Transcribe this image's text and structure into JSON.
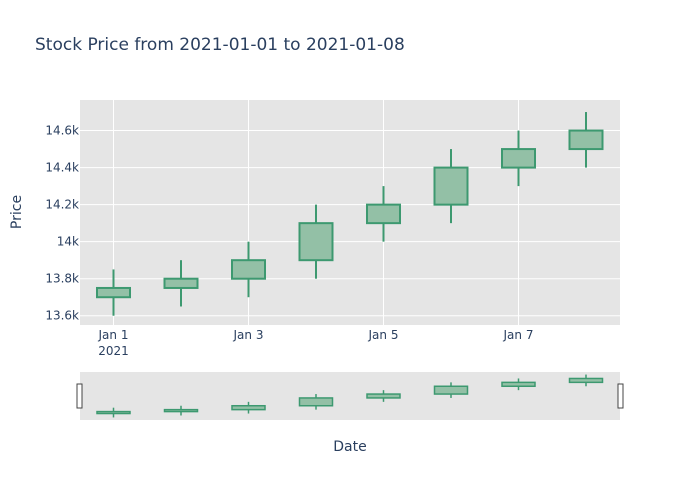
{
  "chart_data": {
    "type": "candlestick",
    "title": "Stock Price from 2021-01-01 to 2021-01-08",
    "xlabel": "Date",
    "ylabel": "Price",
    "ylim": [
      13550,
      14765
    ],
    "x_ticks": [
      {
        "date": "2021-01-01",
        "label": "Jan 1",
        "sublabel": "2021"
      },
      {
        "date": "2021-01-03",
        "label": "Jan 3",
        "sublabel": ""
      },
      {
        "date": "2021-01-05",
        "label": "Jan 5",
        "sublabel": ""
      },
      {
        "date": "2021-01-07",
        "label": "Jan 7",
        "sublabel": ""
      }
    ],
    "y_ticks": [
      {
        "value": 13600,
        "label": "13.6k"
      },
      {
        "value": 13800,
        "label": "13.8k"
      },
      {
        "value": 14000,
        "label": "14k"
      },
      {
        "value": 14200,
        "label": "14.2k"
      },
      {
        "value": 14400,
        "label": "14.4k"
      },
      {
        "value": 14600,
        "label": "14.6k"
      }
    ],
    "candles": [
      {
        "date": "2021-01-01",
        "open": 13700,
        "high": 13850,
        "low": 13600,
        "close": 13750
      },
      {
        "date": "2021-01-02",
        "open": 13750,
        "high": 13900,
        "low": 13650,
        "close": 13800
      },
      {
        "date": "2021-01-03",
        "open": 13800,
        "high": 14000,
        "low": 13700,
        "close": 13900
      },
      {
        "date": "2021-01-04",
        "open": 13900,
        "high": 14200,
        "low": 13800,
        "close": 14100
      },
      {
        "date": "2021-01-05",
        "open": 14100,
        "high": 14300,
        "low": 14000,
        "close": 14200
      },
      {
        "date": "2021-01-06",
        "open": 14200,
        "high": 14500,
        "low": 14100,
        "close": 14400
      },
      {
        "date": "2021-01-07",
        "open": 14400,
        "high": 14600,
        "low": 14300,
        "close": 14500
      },
      {
        "date": "2021-01-08",
        "open": 14500,
        "high": 14700,
        "low": 14400,
        "close": 14600
      }
    ],
    "colors": {
      "increasing_line": "#3d9970",
      "increasing_fill": "#93c0a6",
      "plot_bg": "#e5e5e5",
      "grid": "#ffffff",
      "text": "#2a3f5f"
    },
    "grid": true,
    "range_slider": true
  }
}
